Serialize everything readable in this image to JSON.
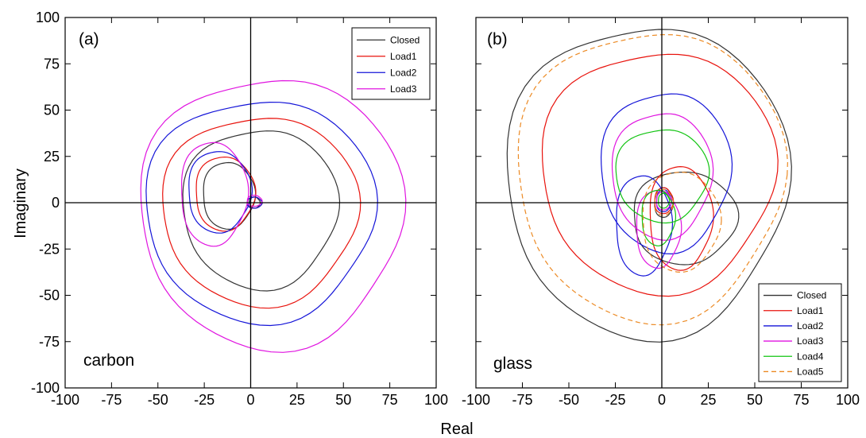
{
  "figure": {
    "y_axis_title": "Imaginary",
    "x_axis_title": "Real"
  },
  "chart_data": [
    {
      "type": "line",
      "panel_label": "(a)",
      "annotation": "carbon",
      "xlim": [
        -100,
        100
      ],
      "ylim": [
        -100,
        100
      ],
      "x_ticks": [
        -100,
        -75,
        -50,
        -25,
        0,
        25,
        50,
        75,
        100
      ],
      "y_ticks": [
        -100,
        -75,
        -50,
        -25,
        0,
        25,
        50,
        75,
        100
      ],
      "legend_position": "top-right",
      "series": [
        {
          "name": "Closed",
          "color": "#333333",
          "dash": "none",
          "rings": [
            {
              "cx": 5,
              "cy": -3,
              "rx": 42,
              "ry": 43
            },
            {
              "cx": -12,
              "cy": 4,
              "rx": 14,
              "ry": 18
            },
            {
              "cx": 2,
              "cy": 0,
              "rx": 3,
              "ry": 3
            }
          ]
        },
        {
          "name": "Load1",
          "color": "#e8120c",
          "dash": "none",
          "rings": [
            {
              "cx": 5,
              "cy": -4,
              "rx": 53,
              "ry": 51
            },
            {
              "cx": -14,
              "cy": 5,
              "rx": 16,
              "ry": 20
            },
            {
              "cx": 2,
              "cy": 0,
              "rx": 4,
              "ry": 3
            }
          ]
        },
        {
          "name": "Load2",
          "color": "#1414d8",
          "dash": "none",
          "rings": [
            {
              "cx": 5,
              "cy": -4,
              "rx": 62,
              "ry": 60
            },
            {
              "cx": -17,
              "cy": 6,
              "rx": 17,
              "ry": 22
            },
            {
              "cx": 2,
              "cy": 0,
              "rx": 4,
              "ry": 3
            }
          ]
        },
        {
          "name": "Load3",
          "color": "#e014e0",
          "dash": "none",
          "rings": [
            {
              "cx": 11,
              "cy": -5,
              "rx": 71,
              "ry": 73
            },
            {
              "cx": -20,
              "cy": 5,
              "rx": 18,
              "ry": 28
            },
            {
              "cx": 2,
              "cy": 1,
              "rx": 4,
              "ry": 3
            }
          ]
        }
      ]
    },
    {
      "type": "line",
      "panel_label": "(b)",
      "annotation": "glass",
      "xlim": [
        -100,
        100
      ],
      "ylim": [
        -100,
        100
      ],
      "x_ticks": [
        -100,
        -75,
        -50,
        -25,
        0,
        25,
        50,
        75,
        100
      ],
      "y_ticks": [
        -100,
        -75,
        -50,
        -25,
        0,
        25,
        50,
        75,
        100
      ],
      "legend_position": "bottom-right",
      "series": [
        {
          "name": "Closed",
          "color": "#333333",
          "dash": "none",
          "rings": [
            {
              "cx": -8,
              "cy": 12,
              "rx": 76,
              "ry": 84
            },
            {
              "cx": 12,
              "cy": -8,
              "rx": 28,
              "ry": 25
            },
            {
              "cx": 1,
              "cy": 0,
              "rx": 5,
              "ry": 8
            }
          ]
        },
        {
          "name": "Load1",
          "color": "#e8120c",
          "dash": "none",
          "rings": [
            {
              "cx": -2,
              "cy": 17,
              "rx": 63,
              "ry": 65
            },
            {
              "cx": 10,
              "cy": -8,
              "rx": 17,
              "ry": 28
            },
            {
              "cx": 1,
              "cy": 1,
              "rx": 5,
              "ry": 7
            }
          ]
        },
        {
          "name": "Load2",
          "color": "#1414d8",
          "dash": "none",
          "rings": [
            {
              "cx": 2,
              "cy": 17,
              "rx": 35,
              "ry": 43
            },
            {
              "cx": -10,
              "cy": -12,
              "rx": 15,
              "ry": 27
            },
            {
              "cx": 1,
              "cy": 1,
              "rx": 4,
              "ry": 6
            }
          ]
        },
        {
          "name": "Load3",
          "color": "#e014e0",
          "dash": "none",
          "rings": [
            {
              "cx": 0,
              "cy": 15,
              "rx": 27,
              "ry": 34
            },
            {
              "cx": -2,
              "cy": -14,
              "rx": 12,
              "ry": 21
            },
            {
              "cx": 1,
              "cy": 1,
              "rx": 4,
              "ry": 5
            }
          ]
        },
        {
          "name": "Load4",
          "color": "#12c412",
          "dash": "none",
          "rings": [
            {
              "cx": 0,
              "cy": 15,
              "rx": 25,
              "ry": 25
            },
            {
              "cx": -2,
              "cy": -8,
              "rx": 9,
              "ry": 15
            },
            {
              "cx": 1,
              "cy": 1,
              "rx": 3,
              "ry": 4
            }
          ]
        },
        {
          "name": "Load5",
          "color": "#ec8a24",
          "dash": "6,4",
          "rings": [
            {
              "cx": -6,
              "cy": 15,
              "rx": 72,
              "ry": 78
            },
            {
              "cx": 10,
              "cy": -10,
              "rx": 21,
              "ry": 27
            },
            {
              "cx": 1,
              "cy": 0,
              "rx": 5,
              "ry": 7
            }
          ]
        }
      ]
    }
  ]
}
